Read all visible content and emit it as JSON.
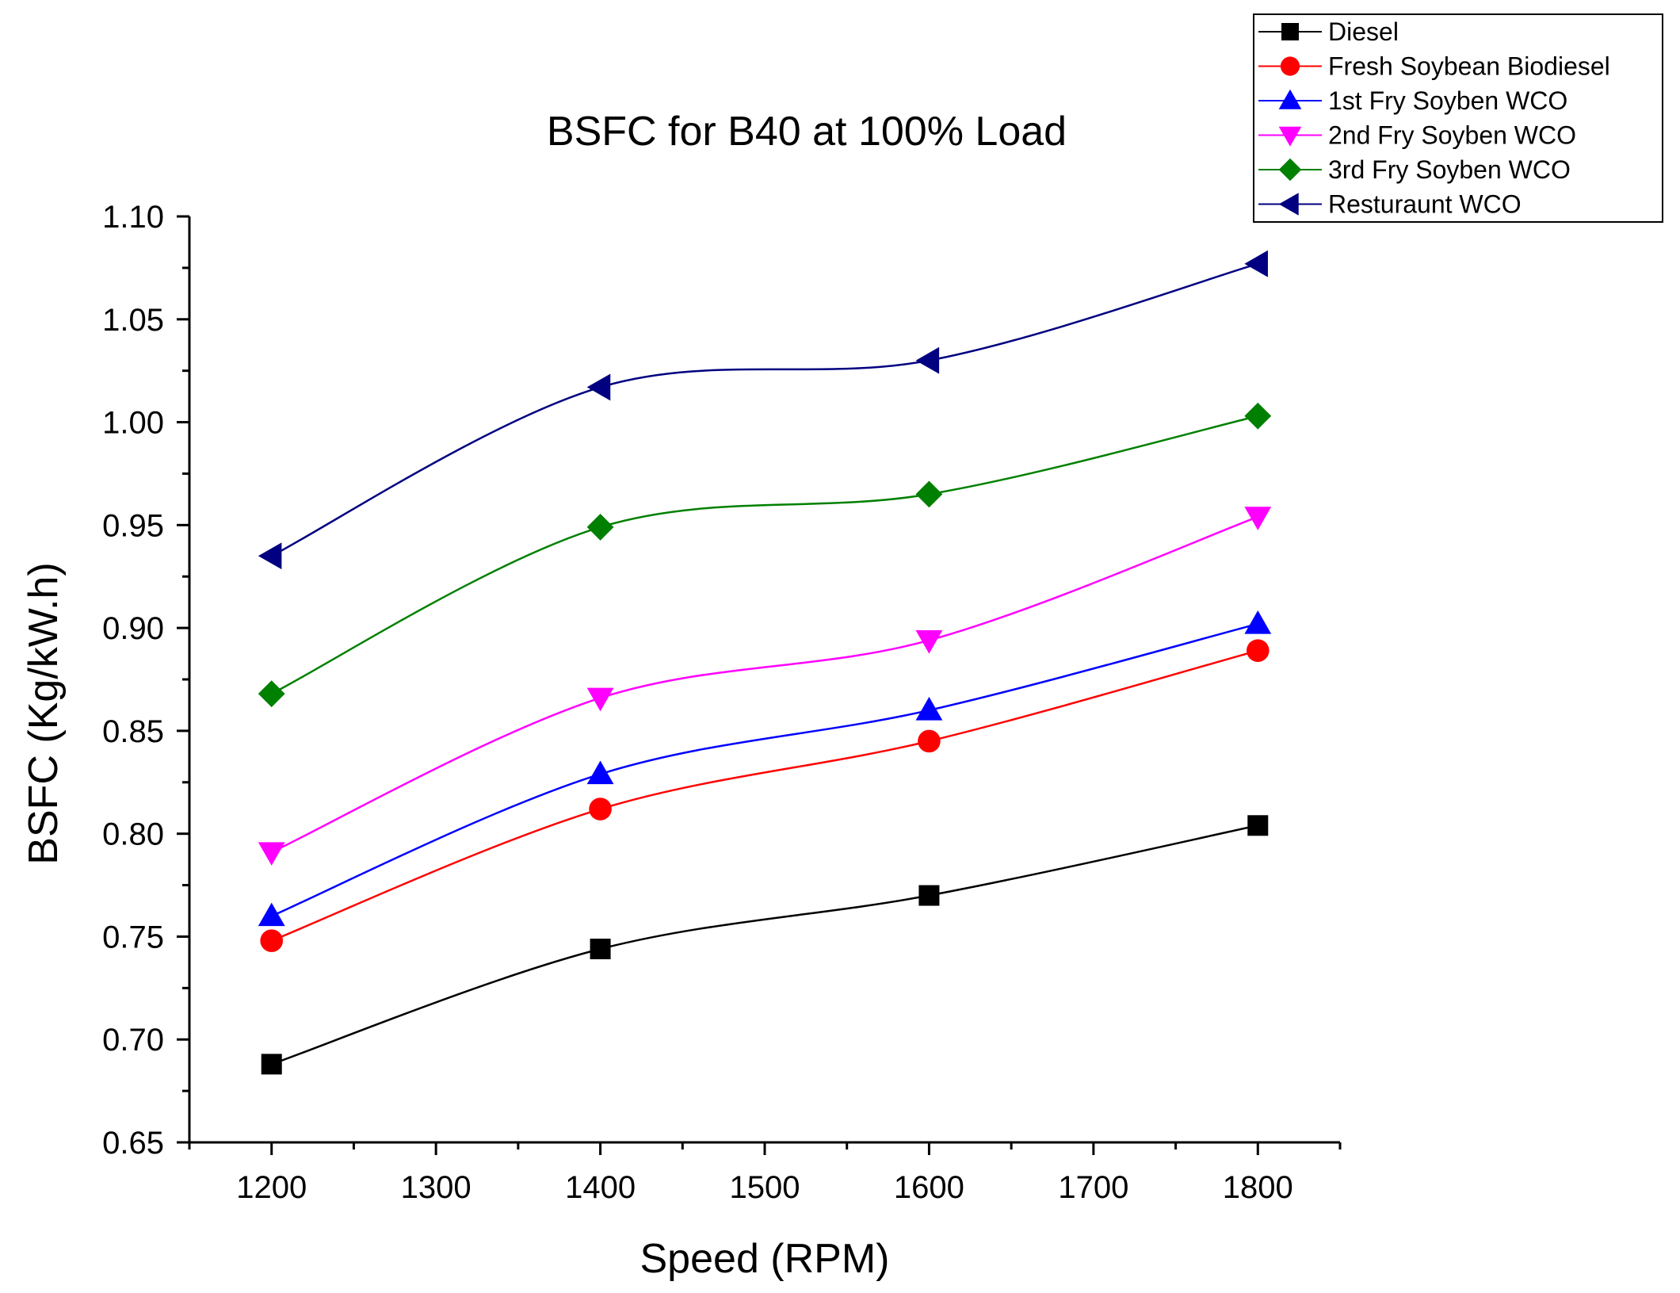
{
  "chart_data": {
    "type": "line",
    "title": "BSFC for B40 at 100% Load",
    "xlabel": "Speed (RPM)",
    "ylabel": "BSFC (Kg/kW.h)",
    "xlim": [
      1150,
      1850
    ],
    "ylim": [
      0.65,
      1.1
    ],
    "xticks": [
      1200,
      1300,
      1400,
      1500,
      1600,
      1700,
      1800
    ],
    "xtick_labels": [
      "1200",
      "1300",
      "1400",
      "1500",
      "1600",
      "1700",
      "1800"
    ],
    "yticks": [
      0.65,
      0.7,
      0.75,
      0.8,
      0.85,
      0.9,
      0.95,
      1.0,
      1.05,
      1.1
    ],
    "ytick_labels": [
      "0.65",
      "0.70",
      "0.75",
      "0.80",
      "0.85",
      "0.90",
      "0.95",
      "1.00",
      "1.05",
      "1.10"
    ],
    "x": [
      1200,
      1400,
      1600,
      1800
    ],
    "legend_position": "top-right",
    "grid": false,
    "series": [
      {
        "name": "Diesel",
        "color": "#000000",
        "marker": "square",
        "values": [
          0.688,
          0.744,
          0.77,
          0.804
        ]
      },
      {
        "name": "Fresh Soybean Biodiesel",
        "color": "#ff0000",
        "marker": "circle",
        "values": [
          0.748,
          0.812,
          0.845,
          0.889
        ]
      },
      {
        "name": "1st Fry Soyben WCO",
        "color": "#0000ff",
        "marker": "triangle-up",
        "values": [
          0.76,
          0.829,
          0.86,
          0.902
        ]
      },
      {
        "name": "2nd Fry Soyben WCO",
        "color": "#ff00ff",
        "marker": "triangle-down",
        "values": [
          0.791,
          0.866,
          0.894,
          0.954
        ]
      },
      {
        "name": "3rd Fry Soyben WCO",
        "color": "#008000",
        "marker": "diamond",
        "values": [
          0.868,
          0.949,
          0.965,
          1.003
        ]
      },
      {
        "name": "Resturaunt WCO",
        "color": "#000080",
        "marker": "triangle-left",
        "values": [
          0.935,
          1.017,
          1.03,
          1.077
        ]
      }
    ]
  }
}
